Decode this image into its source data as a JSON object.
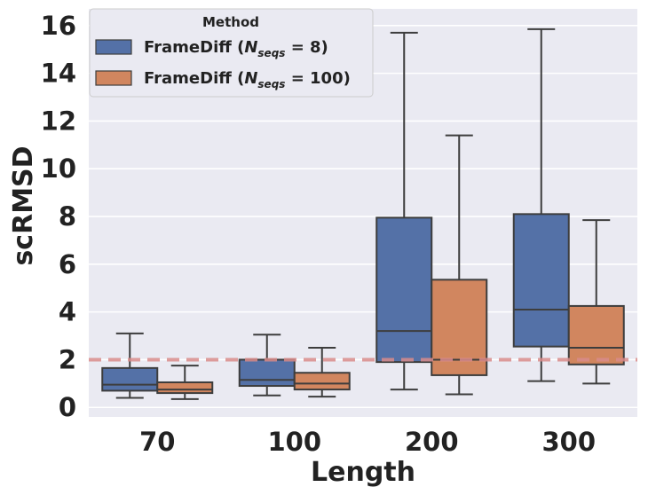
{
  "chart_data": {
    "type": "boxplot",
    "title": "",
    "xlabel": "Length",
    "ylabel": "scRMSD",
    "categories": [
      "70",
      "100",
      "200",
      "300"
    ],
    "ylim": [
      -0.4,
      16.7
    ],
    "yticks": [
      0,
      2,
      4,
      6,
      8,
      10,
      12,
      14,
      16
    ],
    "grid": true,
    "legend": {
      "title": "Method",
      "position": "top-left"
    },
    "reference_line": {
      "y": 2,
      "style": "dashed",
      "color": "#d98b8b"
    },
    "series": [
      {
        "name": "FrameDiff (N_seqs = 8)",
        "legend_main": "FrameDiff (",
        "legend_N": "N",
        "legend_sub": "seqs",
        "legend_value": " = 8)",
        "color": "#5471a7",
        "boxes": [
          {
            "whisker_low": 0.4,
            "q1": 0.7,
            "median": 0.95,
            "q3": 1.65,
            "whisker_high": 3.1
          },
          {
            "whisker_low": 0.5,
            "q1": 0.9,
            "median": 1.15,
            "q3": 2.0,
            "whisker_high": 3.05
          },
          {
            "whisker_low": 0.75,
            "q1": 1.9,
            "median": 3.2,
            "q3": 7.95,
            "whisker_high": 15.7
          },
          {
            "whisker_low": 1.1,
            "q1": 2.55,
            "median": 4.1,
            "q3": 8.1,
            "whisker_high": 15.85
          }
        ]
      },
      {
        "name": "FrameDiff (N_seqs = 100)",
        "legend_main": "FrameDiff (",
        "legend_N": "N",
        "legend_sub": "seqs",
        "legend_value": " = 100)",
        "color": "#d1865f",
        "boxes": [
          {
            "whisker_low": 0.35,
            "q1": 0.6,
            "median": 0.75,
            "q3": 1.05,
            "whisker_high": 1.75
          },
          {
            "whisker_low": 0.45,
            "q1": 0.75,
            "median": 1.0,
            "q3": 1.45,
            "whisker_high": 2.5
          },
          {
            "whisker_low": 0.55,
            "q1": 1.35,
            "median": 2.0,
            "q3": 5.35,
            "whisker_high": 11.4
          },
          {
            "whisker_low": 1.0,
            "q1": 1.8,
            "median": 2.5,
            "q3": 4.25,
            "whisker_high": 7.85
          }
        ]
      }
    ]
  }
}
